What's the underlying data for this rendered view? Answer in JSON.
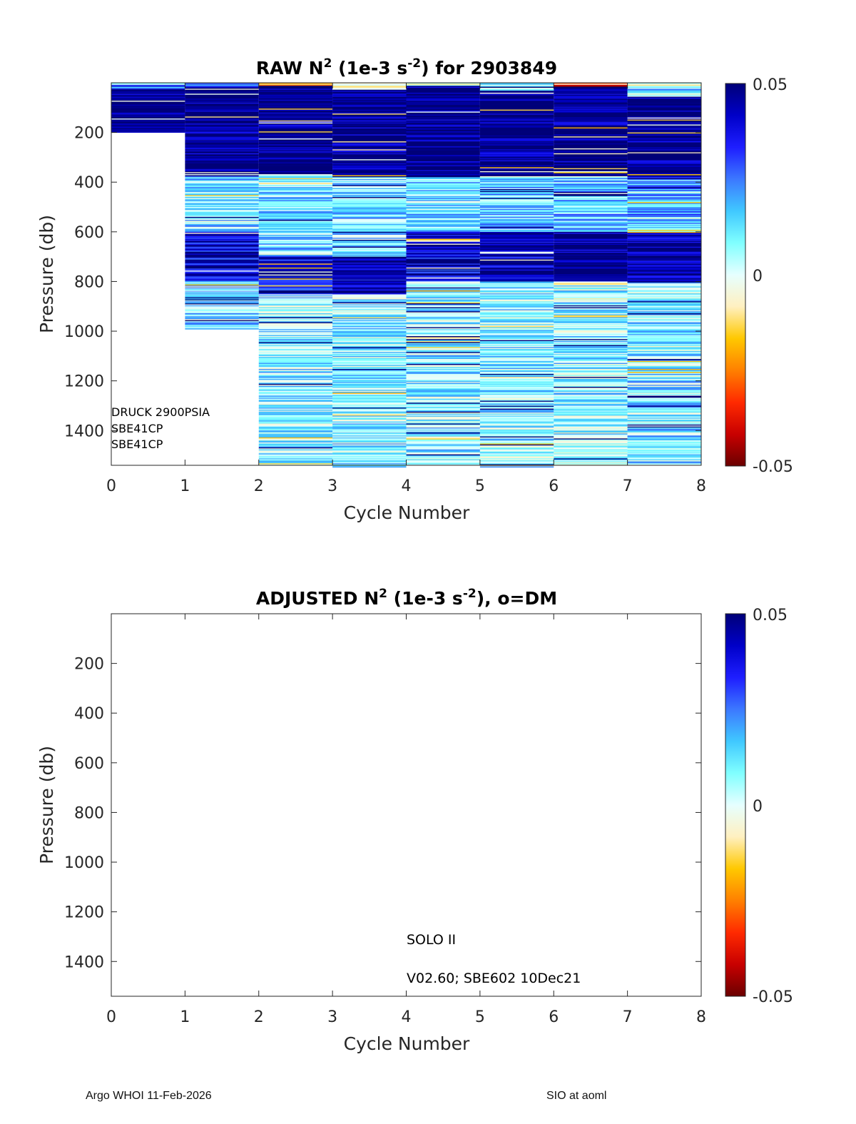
{
  "footer": {
    "left": "Argo WHOI 11-Feb-2026",
    "right": "SIO at aoml"
  },
  "colorbar": {
    "max_label": "0.05",
    "mid_label": "0",
    "min_label": "-0.05",
    "range": [
      -0.05,
      0.05
    ],
    "colors": [
      "#6b0000",
      "#c80000",
      "#ff2a00",
      "#ff8000",
      "#ffc800",
      "#fff0c0",
      "#e6ffff",
      "#80ffff",
      "#40c8ff",
      "#3c78ff",
      "#1e1eff",
      "#0000c8",
      "#000078"
    ]
  },
  "chart_data": [
    {
      "type": "heatmap",
      "title_parts": {
        "a": "RAW N",
        "sup1": "2",
        "b": " (1e-3 s",
        "sup2": "-2",
        "c": ") for 2903849"
      },
      "xlabel": "Cycle Number",
      "ylabel": "Pressure (db)",
      "xlim": [
        0,
        8
      ],
      "ylim": [
        0,
        1540
      ],
      "xticks": [
        "0",
        "1",
        "2",
        "3",
        "4",
        "5",
        "6",
        "7",
        "8"
      ],
      "yticks": [
        "200",
        "400",
        "600",
        "800",
        "1000",
        "1200",
        "1400"
      ],
      "ytick_values": [
        200,
        400,
        600,
        800,
        1000,
        1200,
        1400
      ],
      "annotations": [
        "DRUCK 2900PSIA",
        "SBE41CP",
        "SBE41CP"
      ],
      "columns": [
        {
          "cycle_start": 0,
          "cycle_end": 1,
          "p_min": 0,
          "p_max": 200,
          "bands": [
            [
              0,
              8,
              0.012
            ],
            [
              8,
              28,
              0.03
            ],
            [
              28,
              200,
              0.05
            ]
          ]
        },
        {
          "cycle_start": 1,
          "cycle_end": 2,
          "p_min": 0,
          "p_max": 990,
          "bands": [
            [
              0,
              20,
              0.03
            ],
            [
              20,
              370,
              0.05
            ],
            [
              370,
              600,
              0.012
            ],
            [
              600,
              800,
              0.04
            ],
            [
              800,
              990,
              0.012
            ]
          ]
        },
        {
          "cycle_start": 2,
          "cycle_end": 3,
          "p_min": 0,
          "p_max": 1540,
          "bands": [
            [
              0,
              10,
              -0.02
            ],
            [
              10,
              370,
              0.05
            ],
            [
              370,
              700,
              0.012
            ],
            [
              700,
              850,
              0.04
            ],
            [
              850,
              1540,
              0.008
            ]
          ]
        },
        {
          "cycle_start": 3,
          "cycle_end": 4,
          "p_min": 0,
          "p_max": 1545,
          "bands": [
            [
              0,
              30,
              0.003
            ],
            [
              30,
              380,
              0.05
            ],
            [
              380,
              700,
              0.012
            ],
            [
              700,
              850,
              0.045
            ],
            [
              850,
              1545,
              0.008
            ]
          ]
        },
        {
          "cycle_start": 4,
          "cycle_end": 5,
          "p_min": 0,
          "p_max": 1535,
          "bands": [
            [
              0,
              10,
              -0.005
            ],
            [
              10,
              380,
              0.05
            ],
            [
              380,
              600,
              0.012
            ],
            [
              600,
              800,
              0.04
            ],
            [
              800,
              1535,
              0.008
            ]
          ]
        },
        {
          "cycle_start": 5,
          "cycle_end": 6,
          "p_min": 0,
          "p_max": 1545,
          "bands": [
            [
              0,
              30,
              0.003
            ],
            [
              30,
              380,
              0.05
            ],
            [
              380,
              600,
              0.015
            ],
            [
              600,
              800,
              0.045
            ],
            [
              800,
              1545,
              0.008
            ]
          ]
        },
        {
          "cycle_start": 6,
          "cycle_end": 7,
          "p_min": 0,
          "p_max": 1540,
          "bands": [
            [
              0,
              15,
              -0.04
            ],
            [
              15,
              380,
              0.05
            ],
            [
              380,
              600,
              0.015
            ],
            [
              600,
              800,
              0.048
            ],
            [
              800,
              1540,
              0.008
            ]
          ]
        },
        {
          "cycle_start": 7,
          "cycle_end": 8,
          "p_min": 0,
          "p_max": 1535,
          "bands": [
            [
              0,
              20,
              0.003
            ],
            [
              20,
              60,
              0.015
            ],
            [
              60,
              380,
              0.05
            ],
            [
              380,
              600,
              0.02
            ],
            [
              600,
              800,
              0.045
            ],
            [
              800,
              1535,
              0.01
            ]
          ]
        }
      ]
    },
    {
      "type": "heatmap",
      "title_parts": {
        "a": "ADJUSTED N",
        "sup1": "2",
        "b": " (1e-3 s",
        "sup2": "-2",
        "c": "), o=DM"
      },
      "xlabel": "Cycle Number",
      "ylabel": "Pressure (db)",
      "xlim": [
        0,
        8
      ],
      "ylim": [
        0,
        1540
      ],
      "xticks": [
        "0",
        "1",
        "2",
        "3",
        "4",
        "5",
        "6",
        "7",
        "8"
      ],
      "yticks": [
        "200",
        "400",
        "600",
        "800",
        "1000",
        "1200",
        "1400"
      ],
      "ytick_values": [
        200,
        400,
        600,
        800,
        1000,
        1200,
        1400
      ],
      "annotations": [
        "SOLO II",
        "V02.60; SBE602 10Dec21"
      ],
      "columns": []
    }
  ]
}
